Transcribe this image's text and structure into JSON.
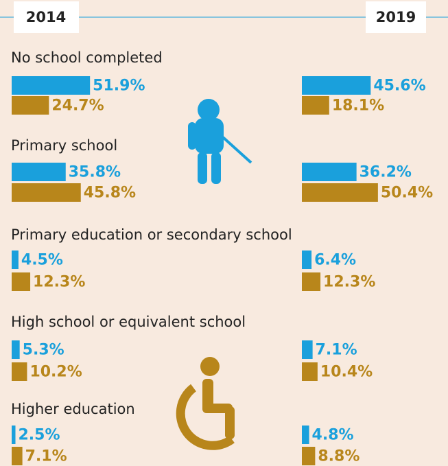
{
  "chart_data": {
    "type": "bar",
    "columns": [
      "2014",
      "2019"
    ],
    "categories": [
      "No school completed",
      "Primary school",
      "Primary education or secondary school",
      "High school or equivalent school",
      "Higher education"
    ],
    "series": [
      {
        "color": "#1aa0dc",
        "values": [
          [
            51.9,
            35.8,
            4.5,
            5.3,
            2.5
          ],
          [
            45.6,
            36.2,
            6.4,
            7.1,
            4.8
          ]
        ],
        "value_labels": [
          [
            "51.9%",
            "35.8%",
            "4.5%",
            "5.3%",
            "2.5%"
          ],
          [
            "45.6%",
            "36.2%",
            "6.4%",
            "7.1%",
            "4.8%"
          ]
        ]
      },
      {
        "color": "#b8861b",
        "values": [
          [
            24.7,
            45.8,
            12.3,
            10.2,
            7.1
          ],
          [
            18.1,
            50.4,
            12.3,
            10.4,
            8.8
          ]
        ],
        "value_labels": [
          [
            "24.7%",
            "45.8%",
            "12.3%",
            "10.2%",
            "7.1%"
          ],
          [
            "18.1%",
            "50.4%",
            "12.3%",
            "10.4%",
            "8.8%"
          ]
        ]
      }
    ]
  }
}
